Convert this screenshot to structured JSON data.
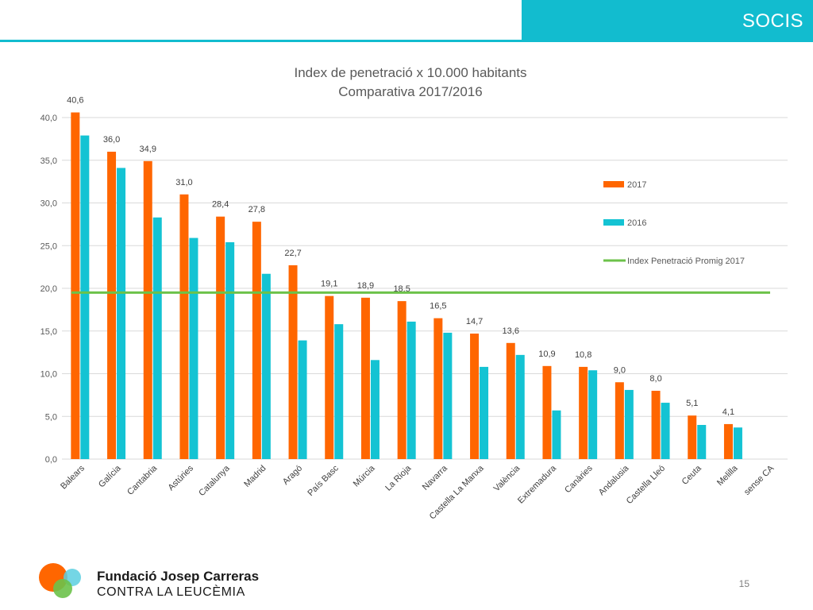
{
  "header": {
    "section_label": "SOCIS"
  },
  "colors": {
    "accent": "#12bccf",
    "series_2017": "#ff6600",
    "series_2016": "#14c3d3",
    "average_line": "#6cc24a",
    "logo_orange": "#ff6600",
    "logo_cyan": "#5ccfe0",
    "logo_green": "#6cc24a"
  },
  "footer": {
    "org_name": "Fundació Josep Carreras",
    "org_sub": "CONTRA LA LEUCÈMIA",
    "page_number": "15"
  },
  "chart_data": {
    "type": "bar",
    "title": "Index de penetració x 10.000 habitants",
    "subtitle": "Comparativa  2017/2016",
    "categories": [
      "Balears",
      "Galícia",
      "Cantabria",
      "Astúries",
      "Catalunya",
      "Madrid",
      "Aragó",
      "País Basc",
      "Múrcia",
      "La Rioja",
      "Navarra",
      "Castella La Manxa",
      "València",
      "Extremadura",
      "Canàries",
      "Andalusia",
      "Castella Lleó",
      "Ceuta",
      "Melilla",
      "sense CA"
    ],
    "series": [
      {
        "name": "2017",
        "values": [
          40.6,
          36.0,
          34.9,
          31.0,
          28.4,
          27.8,
          22.7,
          19.1,
          18.9,
          18.5,
          16.5,
          14.7,
          13.6,
          10.9,
          10.8,
          9.0,
          8.0,
          5.1,
          4.1,
          null
        ],
        "data_labels": [
          "40,6",
          "36,0",
          "34,9",
          "31,0",
          "28,4",
          "27,8",
          "22,7",
          "19,1",
          "18,9",
          "18,5",
          "16,5",
          "14,7",
          "13,6",
          "10,9",
          "10,8",
          "9,0",
          "8,0",
          "5,1",
          "4,1",
          ""
        ]
      },
      {
        "name": "2016",
        "values": [
          37.9,
          34.1,
          28.3,
          25.9,
          25.4,
          21.7,
          13.9,
          15.8,
          11.6,
          16.1,
          14.8,
          10.8,
          12.2,
          5.7,
          10.4,
          8.1,
          6.6,
          4.0,
          3.7,
          null
        ]
      }
    ],
    "reference_line": {
      "name": "Index Penetració Promig 2017",
      "value": 19.5
    },
    "ylim": [
      0,
      40
    ],
    "yticks": [
      0,
      5,
      10,
      15,
      20,
      25,
      30,
      35,
      40
    ],
    "ytick_labels": [
      "0,0",
      "5,0",
      "10,0",
      "15,0",
      "20,0",
      "25,0",
      "30,0",
      "35,0",
      "40,0"
    ],
    "xlabel": "",
    "ylabel": "",
    "grid": true,
    "legend_position": "right"
  }
}
